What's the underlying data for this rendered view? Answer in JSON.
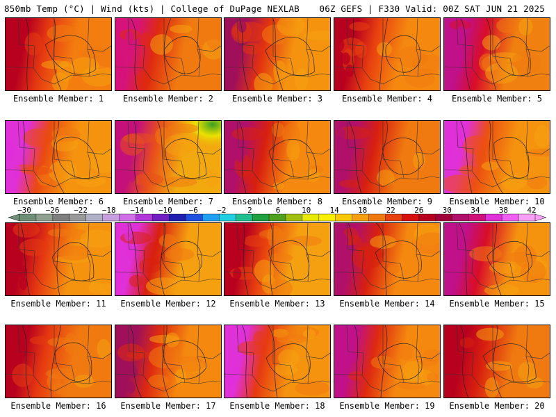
{
  "header": {
    "left": "850mb Temp (°C) | Wind (kts) | College of DuPage NEXLAB",
    "right": "06Z GEFS | F330 Valid: 00Z SAT JUN 21 2025"
  },
  "members": [
    {
      "label": "Ensemble Member: 1",
      "west": "#b8001f",
      "mid": "#e63a10",
      "east": "#f47d0f"
    },
    {
      "label": "Ensemble Member: 2",
      "west": "#d6137a",
      "mid": "#de2a0f",
      "east": "#f07a10"
    },
    {
      "label": "Ensemble Member: 3",
      "west": "#a0105a",
      "mid": "#e2330f",
      "east": "#f5930f"
    },
    {
      "label": "Ensemble Member: 4",
      "west": "#b8001f",
      "mid": "#e8400f",
      "east": "#f5890f"
    },
    {
      "label": "Ensemble Member: 5",
      "west": "#c0108a",
      "mid": "#d80e28",
      "east": "#f0800f"
    },
    {
      "label": "Ensemble Member: 6",
      "west": "#e030d8",
      "mid": "#ea4a10",
      "east": "#f5930f"
    },
    {
      "label": "Ensemble Member: 7",
      "west": "#c4107a",
      "mid": "#e8501a",
      "east": "#f2a80f",
      "nw": "#3aa021"
    },
    {
      "label": "Ensemble Member: 8",
      "west": "#b0106a",
      "mid": "#d8200f",
      "east": "#f5890f"
    },
    {
      "label": "Ensemble Member: 9",
      "west": "#b0106a",
      "mid": "#d8200f",
      "east": "#f07a10"
    },
    {
      "label": "Ensemble Member: 10",
      "west": "#e030d8",
      "mid": "#ec5010",
      "east": "#f5930f"
    },
    {
      "label": "Ensemble Member: 11",
      "west": "#b8001f",
      "mid": "#e63a10",
      "east": "#f5930f"
    },
    {
      "label": "Ensemble Member: 12",
      "west": "#e030d8",
      "mid": "#d8200f",
      "east": "#f5a010"
    },
    {
      "label": "Ensemble Member: 13",
      "west": "#b8001f",
      "mid": "#e8400f",
      "east": "#f5a010"
    },
    {
      "label": "Ensemble Member: 14",
      "west": "#b0106a",
      "mid": "#d8200f",
      "east": "#f5890f"
    },
    {
      "label": "Ensemble Member: 15",
      "west": "#c0108a",
      "mid": "#d80e28",
      "east": "#f5930f"
    },
    {
      "label": "Ensemble Member: 16",
      "west": "#b8001f",
      "mid": "#e63a10",
      "east": "#f07a10"
    },
    {
      "label": "Ensemble Member: 17",
      "west": "#a0105a",
      "mid": "#de2a0f",
      "east": "#f5890f"
    },
    {
      "label": "Ensemble Member: 18",
      "west": "#e030d8",
      "mid": "#e63a10",
      "east": "#f5930f"
    },
    {
      "label": "Ensemble Member: 19",
      "west": "#c0108a",
      "mid": "#de2a0f",
      "east": "#f5890f"
    },
    {
      "label": "Ensemble Member: 20",
      "west": "#b8001f",
      "mid": "#d8200f",
      "east": "#f07a10"
    }
  ],
  "colorbar": {
    "labels": [
      "−30",
      "−26",
      "−22",
      "−18",
      "−14",
      "−10",
      "−6",
      "−2",
      "2",
      "6",
      "10",
      "14",
      "18",
      "22",
      "26",
      "30",
      "34",
      "38",
      "42"
    ],
    "colors": [
      "#6f8f76",
      "#8fa08f",
      "#7f7f7f",
      "#9a9a9a",
      "#b0b0c8",
      "#c8a0e0",
      "#d070e8",
      "#b038d8",
      "#7020c0",
      "#2020b0",
      "#2050e0",
      "#20a0f0",
      "#20d0e0",
      "#20c090",
      "#20a040",
      "#50a020",
      "#a0c010",
      "#e8e800",
      "#f8f000",
      "#f8c800",
      "#f5a010",
      "#f07a10",
      "#e8400f",
      "#d8100f",
      "#b8001f",
      "#a0003a",
      "#b0106a",
      "#d0107a",
      "#e030d8",
      "#f060f0",
      "#f8a0f8"
    ]
  }
}
